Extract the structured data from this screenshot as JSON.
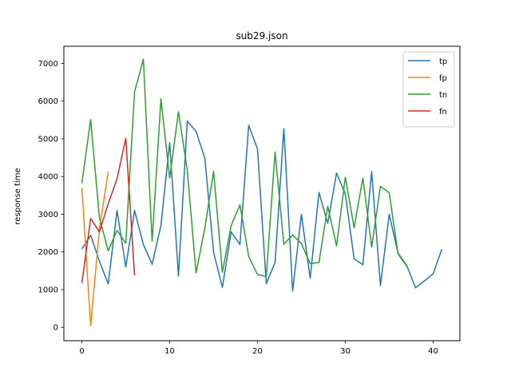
{
  "chart_data": {
    "type": "line",
    "title": "sub29.json",
    "xlabel": "",
    "ylabel": "response time",
    "xlim": [
      -2.05,
      43.05
    ],
    "ylim": [
      -355,
      7455
    ],
    "xticks": [
      0,
      10,
      20,
      30,
      40
    ],
    "yticks": [
      0,
      1000,
      2000,
      3000,
      4000,
      5000,
      6000,
      7000
    ],
    "grid": false,
    "legend_position": "top-right",
    "series": [
      {
        "name": "tp",
        "color": "#1f77b4",
        "x": [
          0,
          1,
          2,
          3,
          4,
          5,
          6,
          7,
          8,
          9,
          10,
          11,
          12,
          13,
          14,
          15,
          16,
          17,
          18,
          19,
          20,
          21,
          22,
          23,
          24,
          25,
          26,
          27,
          28,
          29,
          30,
          31,
          32,
          33,
          34,
          35,
          36,
          37,
          38,
          39,
          40,
          41
        ],
        "y": [
          2080,
          2440,
          1750,
          1150,
          3100,
          1600,
          3100,
          2200,
          1670,
          2700,
          4900,
          1360,
          5470,
          5200,
          4490,
          1990,
          1060,
          2530,
          2200,
          5360,
          4730,
          1160,
          1720,
          5270,
          960,
          3000,
          1300,
          3580,
          2760,
          4090,
          3540,
          1820,
          1660,
          4130,
          1110,
          3000,
          1970,
          1640,
          1050,
          1230,
          1420,
          2080
        ]
      },
      {
        "name": "fp",
        "color": "#ff7f0e",
        "x": [
          0,
          1,
          2,
          3
        ],
        "y": [
          3700,
          40,
          2620,
          4130
        ]
      },
      {
        "name": "tn",
        "color": "#2ca02c",
        "x": [
          0,
          1,
          2,
          3,
          4,
          5,
          6,
          7,
          8,
          9,
          10,
          11,
          12,
          13,
          14,
          15,
          16,
          17,
          18,
          19,
          20,
          21,
          22,
          23,
          24,
          25,
          26,
          27,
          28,
          29,
          30,
          31,
          32,
          33,
          34,
          35,
          36,
          37
        ],
        "y": [
          3820,
          5510,
          2900,
          2030,
          2570,
          2230,
          6250,
          7110,
          2280,
          6060,
          3960,
          5720,
          4170,
          1440,
          2630,
          4140,
          1460,
          2700,
          3250,
          1880,
          1400,
          1350,
          4650,
          2200,
          2450,
          2220,
          1690,
          1720,
          3210,
          2160,
          3980,
          2640,
          3960,
          2130,
          3740,
          3570,
          1950,
          1620
        ]
      },
      {
        "name": "fn",
        "color": "#d62728",
        "x": [
          0,
          1,
          2,
          3,
          4,
          5,
          6
        ],
        "y": [
          1170,
          2890,
          2530,
          3280,
          3940,
          5010,
          1380
        ]
      }
    ]
  }
}
